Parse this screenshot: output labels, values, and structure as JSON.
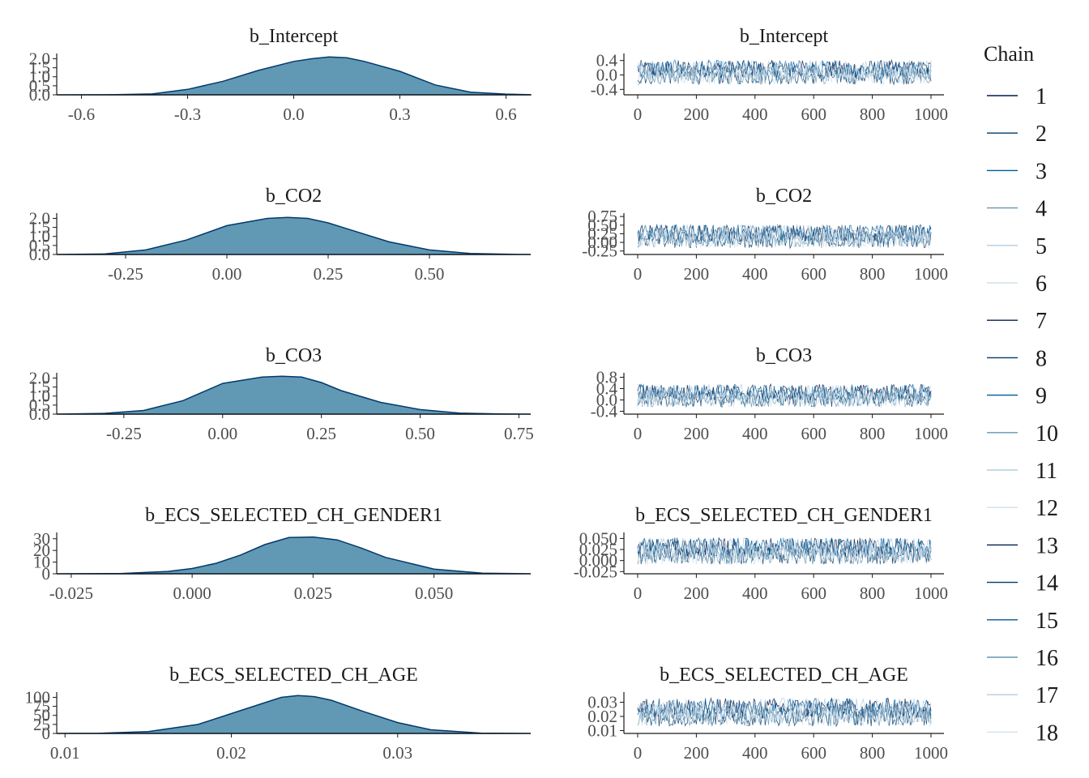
{
  "legend": {
    "title": "Chain",
    "entries": [
      "1",
      "2",
      "3",
      "4",
      "5",
      "6",
      "7",
      "8",
      "9",
      "10",
      "11",
      "12",
      "13",
      "14",
      "15",
      "16",
      "17",
      "18"
    ]
  },
  "colors": {
    "density_fill": "#6199b5",
    "density_line": "#03396c",
    "axis": "#1a1a1a",
    "chain_palette": [
      "#011f4b",
      "#03396c",
      "#005b96",
      "#6497b1",
      "#b3cde0",
      "#d1e1ec"
    ]
  },
  "chart_data": [
    {
      "type": "area",
      "panel": "density",
      "title": "b_Intercept",
      "xlim": [
        -0.67,
        0.67
      ],
      "ylim": [
        0,
        2.2
      ],
      "xticks": [
        "-0.6",
        "-0.3",
        "0.0",
        "0.3",
        "0.6"
      ],
      "xtick_values": [
        -0.6,
        -0.3,
        0.0,
        0.3,
        0.6
      ],
      "yticks": [
        "0.0",
        "0.5",
        "1.0",
        "1.5",
        "2.0"
      ],
      "ytick_values": [
        0,
        0.5,
        1.0,
        1.5,
        2.0
      ],
      "x": [
        -0.67,
        -0.5,
        -0.4,
        -0.3,
        -0.2,
        -0.1,
        0.0,
        0.05,
        0.1,
        0.15,
        0.2,
        0.3,
        0.4,
        0.5,
        0.6,
        0.67
      ],
      "y": [
        0.0,
        0.01,
        0.05,
        0.3,
        0.75,
        1.35,
        1.85,
        2.0,
        2.1,
        2.05,
        1.85,
        1.3,
        0.55,
        0.15,
        0.04,
        0.01
      ]
    },
    {
      "type": "line",
      "panel": "trace",
      "title": "b_Intercept",
      "xlim": [
        0,
        1000
      ],
      "ylim": [
        -0.55,
        0.55
      ],
      "xticks": [
        "0",
        "200",
        "400",
        "600",
        "800",
        "1000"
      ],
      "xtick_values": [
        0,
        200,
        400,
        600,
        800,
        1000
      ],
      "yticks": [
        "-0.4",
        "0.0",
        "0.4"
      ],
      "ytick_values": [
        -0.4,
        0.0,
        0.4
      ],
      "band": [
        -0.3,
        0.45
      ]
    },
    {
      "type": "area",
      "panel": "density",
      "title": "b_CO2",
      "xlim": [
        -0.42,
        0.75
      ],
      "ylim": [
        0,
        2.2
      ],
      "xticks": [
        "-0.25",
        "0.00",
        "0.25",
        "0.50"
      ],
      "xtick_values": [
        -0.25,
        0.0,
        0.25,
        0.5
      ],
      "yticks": [
        "0.0",
        "0.5",
        "1.0",
        "1.5",
        "2.0"
      ],
      "ytick_values": [
        0,
        0.5,
        1.0,
        1.5,
        2.0
      ],
      "x": [
        -0.42,
        -0.3,
        -0.2,
        -0.1,
        0.0,
        0.1,
        0.15,
        0.2,
        0.25,
        0.3,
        0.4,
        0.5,
        0.6,
        0.7,
        0.75
      ],
      "y": [
        0.0,
        0.03,
        0.25,
        0.8,
        1.6,
        2.0,
        2.05,
        2.0,
        1.75,
        1.4,
        0.7,
        0.25,
        0.06,
        0.01,
        0.0
      ]
    },
    {
      "type": "line",
      "panel": "trace",
      "title": "b_CO2",
      "xlim": [
        0,
        1000
      ],
      "ylim": [
        -0.35,
        0.8
      ],
      "xticks": [
        "0",
        "200",
        "400",
        "600",
        "800",
        "1000"
      ],
      "xtick_values": [
        0,
        200,
        400,
        600,
        800,
        1000
      ],
      "yticks": [
        "-0.25",
        "0.00",
        "0.25",
        "0.50",
        "0.75"
      ],
      "ytick_values": [
        -0.25,
        0.0,
        0.25,
        0.5,
        0.75
      ],
      "band": [
        -0.2,
        0.55
      ]
    },
    {
      "type": "area",
      "panel": "density",
      "title": "b_CO3",
      "xlim": [
        -0.42,
        0.78
      ],
      "ylim": [
        0,
        2.2
      ],
      "xticks": [
        "-0.25",
        "0.00",
        "0.25",
        "0.50",
        "0.75"
      ],
      "xtick_values": [
        -0.25,
        0.0,
        0.25,
        0.5,
        0.75
      ],
      "yticks": [
        "0.0",
        "0.5",
        "1.0",
        "1.5",
        "2.0"
      ],
      "ytick_values": [
        0,
        0.5,
        1.0,
        1.5,
        2.0
      ],
      "x": [
        -0.42,
        -0.3,
        -0.2,
        -0.1,
        0.0,
        0.1,
        0.15,
        0.2,
        0.25,
        0.3,
        0.4,
        0.5,
        0.6,
        0.7,
        0.78
      ],
      "y": [
        0.0,
        0.04,
        0.2,
        0.75,
        1.7,
        2.05,
        2.1,
        2.05,
        1.75,
        1.3,
        0.65,
        0.25,
        0.06,
        0.01,
        0.0
      ]
    },
    {
      "type": "line",
      "panel": "trace",
      "title": "b_CO3",
      "xlim": [
        0,
        1000
      ],
      "ylim": [
        -0.5,
        0.9
      ],
      "xticks": [
        "0",
        "200",
        "400",
        "600",
        "800",
        "1000"
      ],
      "xtick_values": [
        0,
        200,
        400,
        600,
        800,
        1000
      ],
      "yticks": [
        "-0.4",
        "0.0",
        "0.4",
        "0.8"
      ],
      "ytick_values": [
        -0.4,
        0.0,
        0.4,
        0.8
      ],
      "band": [
        -0.3,
        0.6
      ]
    },
    {
      "type": "area",
      "panel": "density",
      "title": "b_ECS_SELECTED_CH_GENDER1",
      "xlim": [
        -0.028,
        0.07
      ],
      "ylim": [
        0,
        34
      ],
      "xticks": [
        "-0.025",
        "0.000",
        "0.025",
        "0.050"
      ],
      "xtick_values": [
        -0.025,
        0.0,
        0.025,
        0.05
      ],
      "yticks": [
        "0",
        "10",
        "20",
        "30"
      ],
      "ytick_values": [
        0,
        10,
        20,
        30
      ],
      "x": [
        -0.028,
        -0.015,
        -0.005,
        0.0,
        0.005,
        0.01,
        0.015,
        0.02,
        0.025,
        0.03,
        0.035,
        0.04,
        0.05,
        0.06,
        0.07
      ],
      "y": [
        0.0,
        0.2,
        2.0,
        4.5,
        9.0,
        16.0,
        25.0,
        31.0,
        31.5,
        29.0,
        22.0,
        14.0,
        4.0,
        0.5,
        0.0
      ]
    },
    {
      "type": "line",
      "panel": "trace",
      "title": "b_ECS_SELECTED_CH_GENDER1",
      "xlim": [
        0,
        1000
      ],
      "ylim": [
        -0.03,
        0.06
      ],
      "xticks": [
        "0",
        "200",
        "400",
        "600",
        "800",
        "1000"
      ],
      "xtick_values": [
        0,
        200,
        400,
        600,
        800,
        1000
      ],
      "yticks": [
        "-0.025",
        "0.000",
        "0.025",
        "0.050"
      ],
      "ytick_values": [
        -0.025,
        0.0,
        0.025,
        0.05
      ],
      "band": [
        -0.012,
        0.055
      ]
    },
    {
      "type": "area",
      "panel": "density",
      "title": "b_ECS_SELECTED_CH_AGE",
      "xlim": [
        0.0095,
        0.038
      ],
      "ylim": [
        0,
        110
      ],
      "xticks": [
        "0.01",
        "0.02",
        "0.03"
      ],
      "xtick_values": [
        0.01,
        0.02,
        0.03
      ],
      "yticks": [
        "0",
        "25",
        "50",
        "75",
        "100"
      ],
      "ytick_values": [
        0,
        25,
        50,
        75,
        100
      ],
      "x": [
        0.0095,
        0.012,
        0.015,
        0.018,
        0.02,
        0.022,
        0.023,
        0.024,
        0.025,
        0.026,
        0.028,
        0.03,
        0.032,
        0.035,
        0.038
      ],
      "y": [
        0.0,
        0.5,
        5.0,
        25.0,
        55.0,
        85.0,
        100.0,
        105.0,
        102.0,
        92.0,
        60.0,
        30.0,
        10.0,
        1.0,
        0.0
      ]
    },
    {
      "type": "line",
      "panel": "trace",
      "title": "b_ECS_SELECTED_CH_AGE",
      "xlim": [
        0,
        1000
      ],
      "ylim": [
        0.008,
        0.036
      ],
      "xticks": [
        "0",
        "200",
        "400",
        "600",
        "800",
        "1000"
      ],
      "xtick_values": [
        0,
        200,
        400,
        600,
        800,
        1000
      ],
      "yticks": [
        "0.01",
        "0.02",
        "0.03"
      ],
      "ytick_values": [
        0.01,
        0.02,
        0.03
      ],
      "band": [
        0.012,
        0.034
      ]
    }
  ]
}
